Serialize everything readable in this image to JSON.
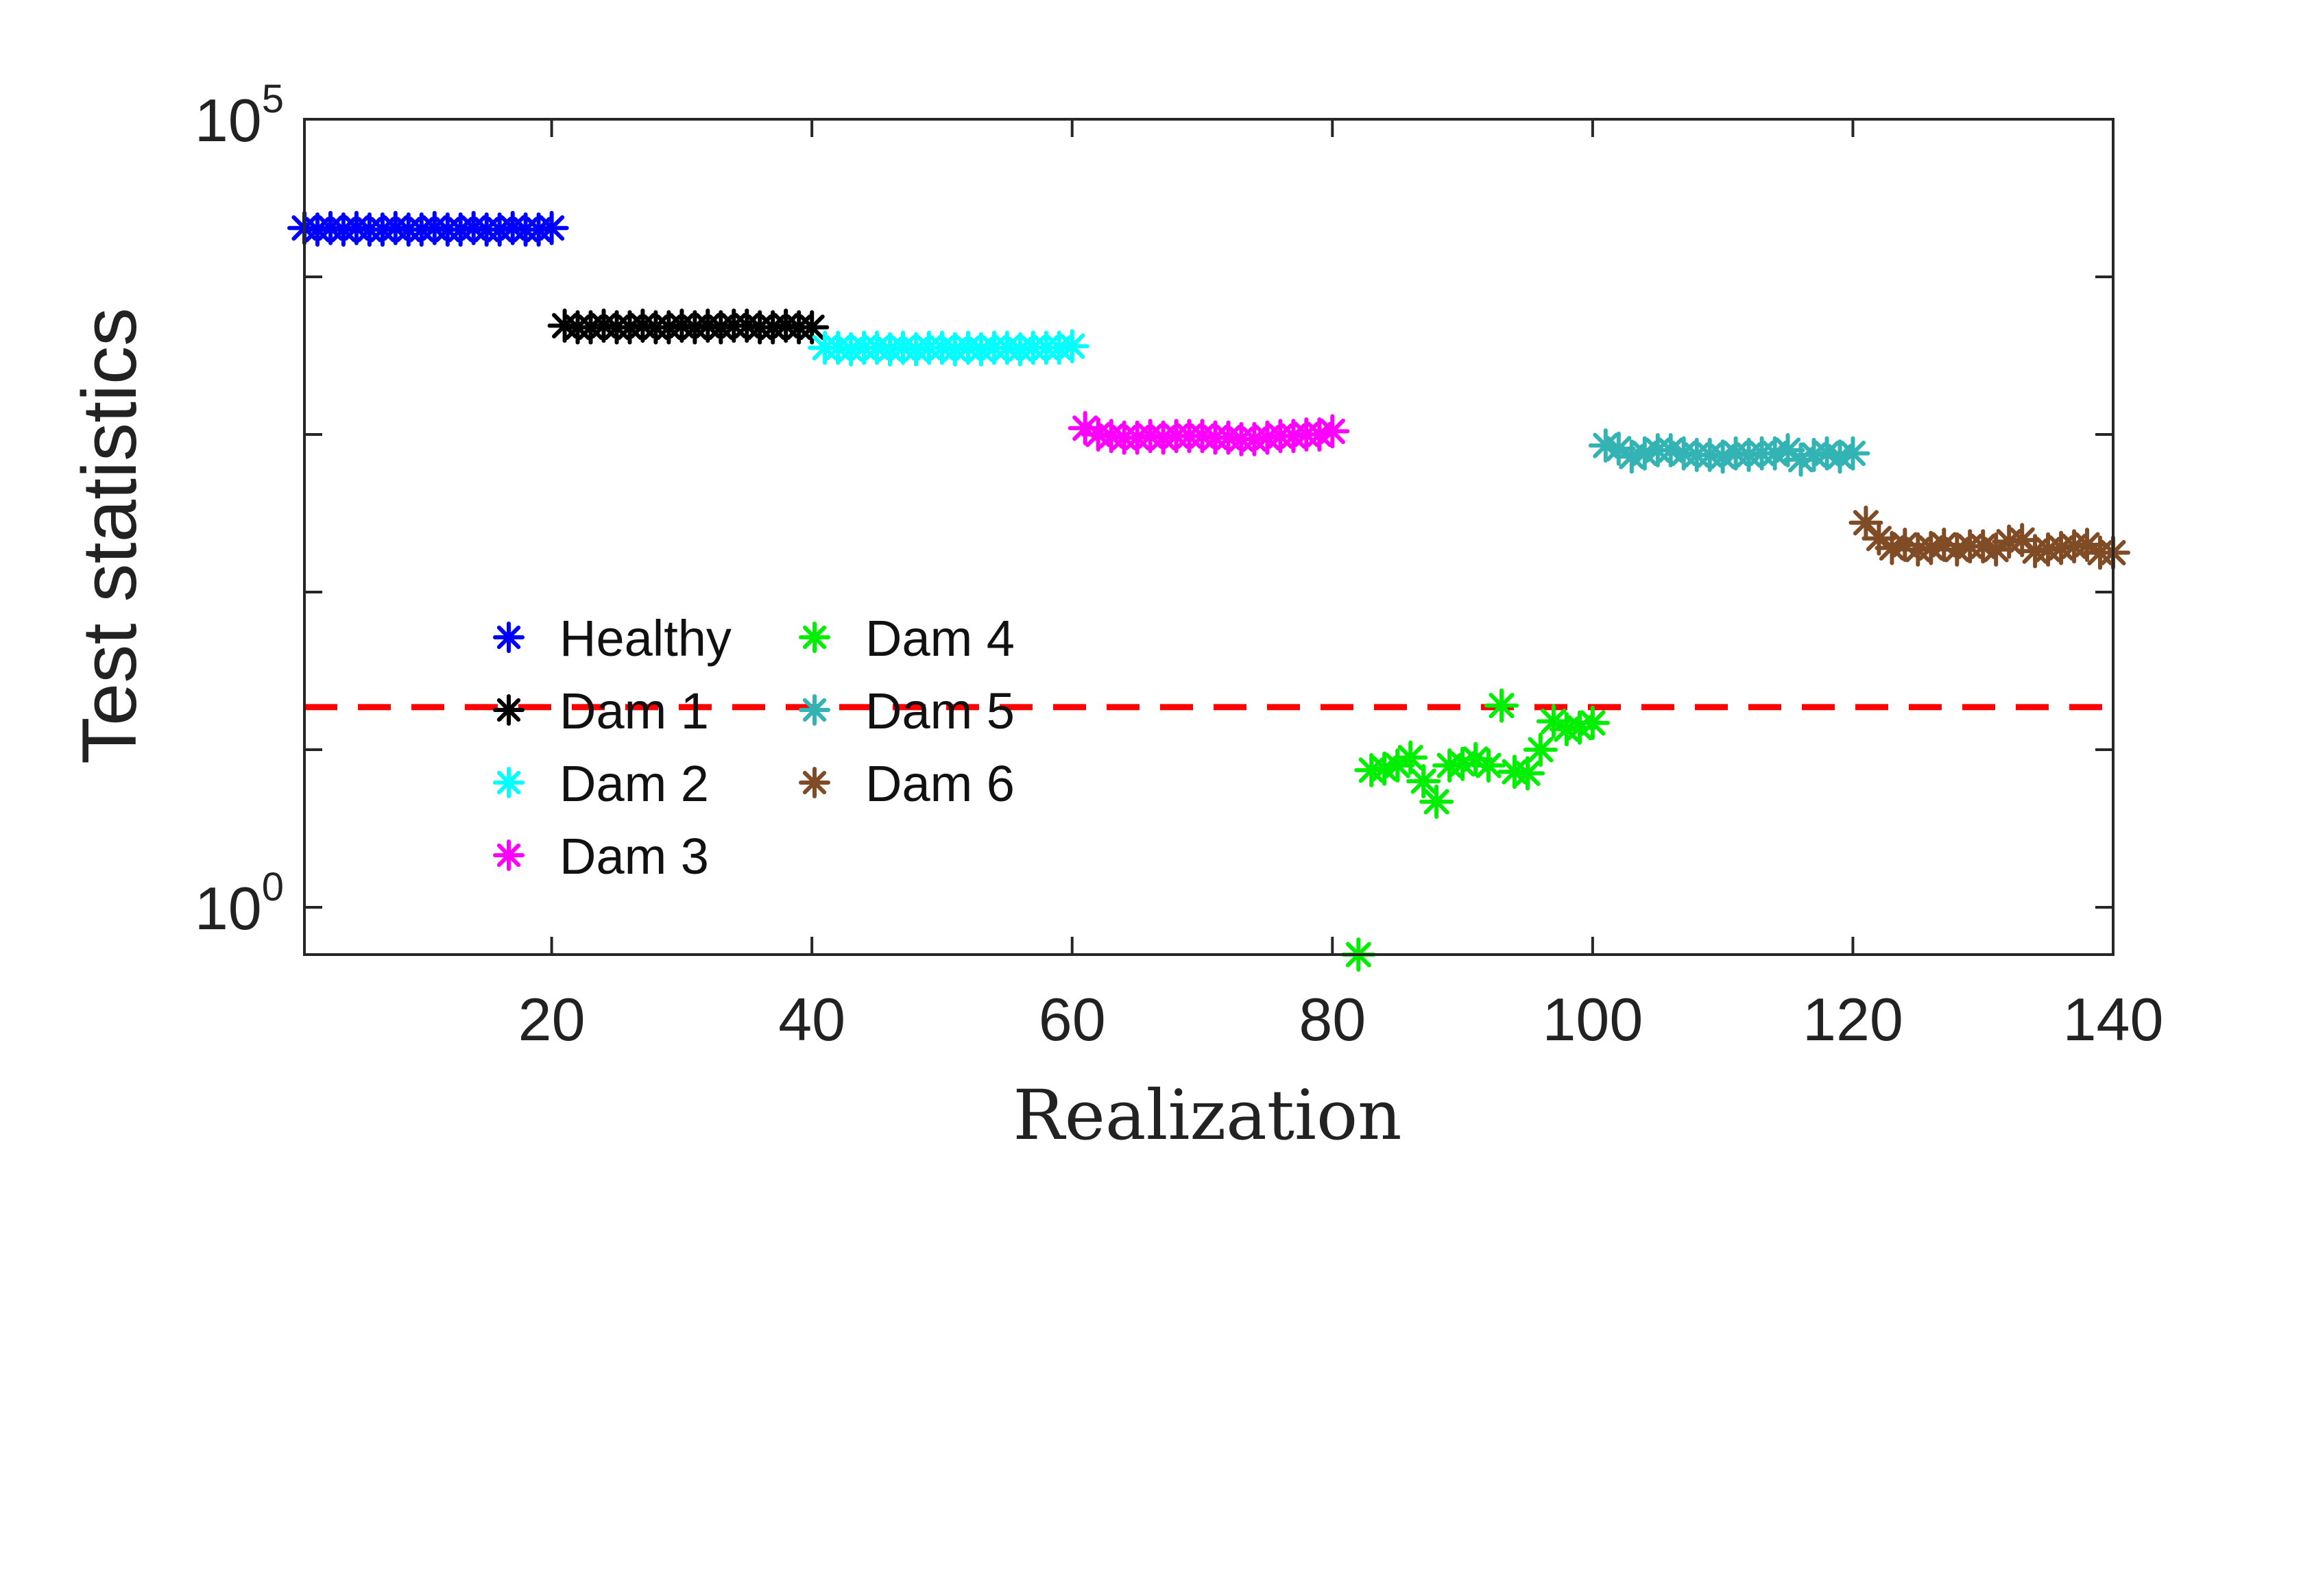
{
  "chart_data": {
    "type": "scatter",
    "title": "",
    "xlabel": "Realization",
    "ylabel": "Test statistics",
    "x_scale": "linear",
    "y_scale": "log",
    "xlim": [
      1,
      140
    ],
    "ylim_log10": [
      -0.3,
      5
    ],
    "xticks": [
      20,
      40,
      60,
      80,
      100,
      120,
      140
    ],
    "yticks": [
      {
        "base": "10",
        "exp": "5",
        "value_log10": 5
      },
      {
        "base": "10",
        "exp": "0",
        "value_log10": 0
      }
    ],
    "minor_yticks_log10": [
      1,
      2,
      3,
      4
    ],
    "marker": "asterisk",
    "legend": {
      "location": "center-left",
      "columns": 2
    },
    "threshold": {
      "value_log10": 1.27,
      "color": "#ff0000",
      "style": "dashed"
    },
    "series": [
      {
        "name": "Healthy",
        "color": "#0000ff",
        "x_start": 1,
        "y_log10": [
          4.31,
          4.3,
          4.31,
          4.3,
          4.31,
          4.3,
          4.3,
          4.31,
          4.3,
          4.3,
          4.31,
          4.3,
          4.3,
          4.31,
          4.3,
          4.3,
          4.31,
          4.3,
          4.3,
          4.31
        ]
      },
      {
        "name": "Dam 1",
        "color": "#000000",
        "x_start": 21,
        "y_log10": [
          3.69,
          3.68,
          3.68,
          3.69,
          3.68,
          3.68,
          3.69,
          3.68,
          3.68,
          3.69,
          3.68,
          3.69,
          3.68,
          3.69,
          3.69,
          3.68,
          3.68,
          3.69,
          3.68,
          3.68
        ]
      },
      {
        "name": "Dam 2",
        "color": "#00ffff",
        "x_start": 41,
        "y_log10": [
          3.55,
          3.55,
          3.54,
          3.55,
          3.55,
          3.54,
          3.55,
          3.54,
          3.55,
          3.55,
          3.54,
          3.55,
          3.54,
          3.55,
          3.55,
          3.54,
          3.55,
          3.55,
          3.55,
          3.56
        ]
      },
      {
        "name": "Dam 3",
        "color": "#ff00ff",
        "x_start": 61,
        "y_log10": [
          3.04,
          3.0,
          2.99,
          2.98,
          2.98,
          2.99,
          2.98,
          2.99,
          2.99,
          2.99,
          2.98,
          2.98,
          2.97,
          2.97,
          2.98,
          2.99,
          2.99,
          3.0,
          3.0,
          3.02
        ]
      },
      {
        "name": "Dam 4",
        "color": "#00ee00",
        "x_start": 81,
        "y_log10": [
          null,
          -0.3,
          0.87,
          0.88,
          0.9,
          0.95,
          0.8,
          0.67,
          0.9,
          0.91,
          0.94,
          0.9,
          1.28,
          0.86,
          0.85,
          1.0,
          1.18,
          1.13,
          1.14,
          1.17
        ]
      },
      {
        "name": "Dam 5",
        "color": "#33b3b3",
        "x_start": 101,
        "y_log10": [
          2.93,
          2.91,
          2.86,
          2.88,
          2.9,
          2.9,
          2.88,
          2.87,
          2.87,
          2.86,
          2.88,
          2.87,
          2.88,
          2.88,
          2.9,
          2.84,
          2.87,
          2.88,
          2.86,
          2.88
        ]
      },
      {
        "name": "Dam 6",
        "color": "#7f4c26",
        "x_start": 121,
        "y_log10": [
          2.44,
          2.34,
          2.28,
          2.3,
          2.27,
          2.28,
          2.3,
          2.27,
          2.29,
          2.29,
          2.27,
          2.32,
          2.33,
          2.26,
          2.27,
          2.28,
          2.29,
          2.3,
          2.25,
          2.25
        ]
      }
    ]
  }
}
